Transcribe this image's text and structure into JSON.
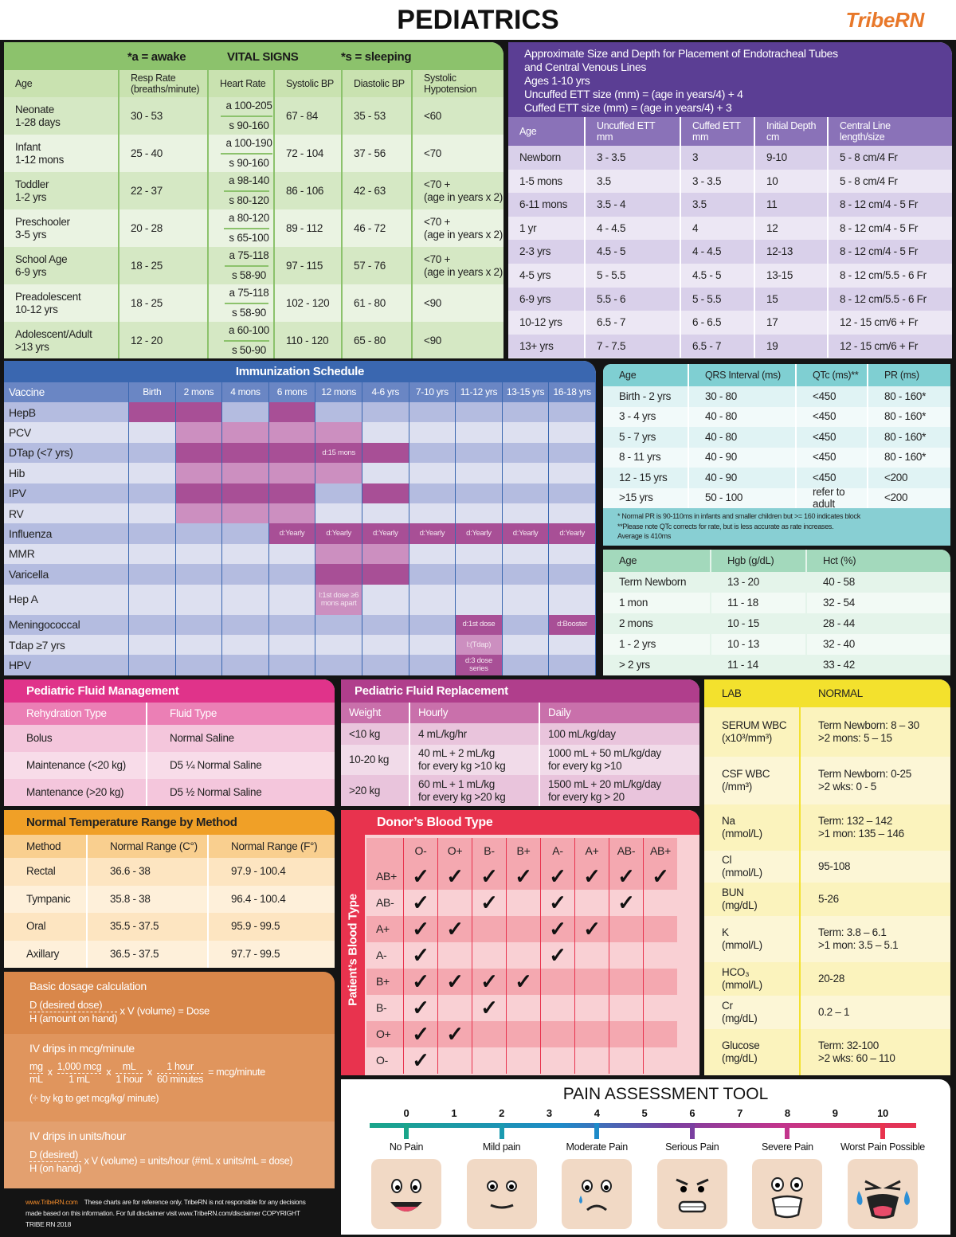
{
  "header": {
    "title": "PEDIATRICS",
    "logo": "TribeRN"
  },
  "colors": {
    "vitals": "#8cc26c",
    "ett": "#5b3e94",
    "immunization": "#3a67b0",
    "dose_dark": "#a84f96",
    "dose_light": "#cc8fc0",
    "ecg": "#5bc3c9",
    "fluid_mgmt": "#e0338a",
    "fluid_repl": "#b03e8c",
    "temperature": "#f0a027",
    "blood": "#e8334e",
    "lab": "#f3e12d"
  },
  "vitals": {
    "awake_note": "*a = awake",
    "title": "VITAL SIGNS",
    "sleep_note": "*s = sleeping",
    "headers": [
      "Age",
      "Resp Rate\n(breaths/minute)",
      "Heart Rate",
      "Systolic BP",
      "Diastolic BP",
      "Systolic\nHypotension"
    ],
    "rows": [
      [
        "Neonate\n1-28 days",
        "30 - 53",
        [
          "a 100-205",
          "s 90-160"
        ],
        "67 - 84",
        "35 - 53",
        "<60"
      ],
      [
        "Infant\n1-12 mons",
        "25 - 40",
        [
          "a 100-190",
          "s 90-160"
        ],
        "72 - 104",
        "37 - 56",
        "<70"
      ],
      [
        "Toddler\n1-2 yrs",
        "22 - 37",
        [
          "a 98-140",
          "s 80-120"
        ],
        "86 - 106",
        "42 - 63",
        "<70 +\n(age in years x 2)"
      ],
      [
        "Preschooler\n3-5 yrs",
        "20 - 28",
        [
          "a 80-120",
          "s 65-100"
        ],
        "89 - 112",
        "46 - 72",
        "<70 +\n(age in years x 2)"
      ],
      [
        "School Age\n6-9 yrs",
        "18 - 25",
        [
          "a 75-118",
          "s 58-90"
        ],
        "97 - 115",
        "57 - 76",
        "<70 +\n(age in years x 2)"
      ],
      [
        "Preadolescent\n10-12 yrs",
        "18 - 25",
        [
          "a 75-118",
          "s 58-90"
        ],
        "102 - 120",
        "61 - 80",
        "<90"
      ],
      [
        "Adolescent/Adult\n>13 yrs",
        "12 - 20",
        [
          "a 60-100",
          "s 50-90"
        ],
        "110 - 120",
        "65 - 80",
        "<90"
      ]
    ]
  },
  "ett": {
    "lines": [
      "Approximate Size and Depth for Placement of Endotracheal Tubes",
      "and Central Venous Lines",
      "Ages 1-10 yrs",
      "Uncuffed ETT size (mm) = (age in years/4) + 4",
      "Cuffed ETT size (mm) = (age in years/4) + 3"
    ],
    "headers": [
      "Age",
      "Uncuffed ETT\nmm",
      "Cuffed ETT\nmm",
      "Initial Depth\ncm",
      "Central Line\nlength/size"
    ],
    "rows": [
      [
        "Newborn",
        "3 - 3.5",
        "3",
        "9-10",
        "5 - 8 cm/4 Fr"
      ],
      [
        "1-5 mons",
        "3.5",
        "3 - 3.5",
        "10",
        "5 - 8 cm/4 Fr"
      ],
      [
        "6-11 mons",
        "3.5 - 4",
        "3.5",
        "11",
        "8 - 12 cm/4 - 5 Fr"
      ],
      [
        "1 yr",
        "4 - 4.5",
        "4",
        "12",
        "8 - 12 cm/4 - 5 Fr"
      ],
      [
        "2-3 yrs",
        "4.5 - 5",
        "4 - 4.5",
        "12-13",
        "8 - 12 cm/4 - 5 Fr"
      ],
      [
        "4-5 yrs",
        "5 - 5.5",
        "4.5 - 5",
        "13-15",
        "8 - 12 cm/5.5 - 6 Fr"
      ],
      [
        "6-9 yrs",
        "5.5 - 6",
        "5 - 5.5",
        "15",
        "8 - 12 cm/5.5 - 6 Fr"
      ],
      [
        "10-12 yrs",
        "6.5 - 7",
        "6 - 6.5",
        "17",
        "12 - 15 cm/6 + Fr"
      ],
      [
        "13+ yrs",
        "7 - 7.5",
        "6.5 - 7",
        "19",
        "12 - 15 cm/6 + Fr"
      ]
    ]
  },
  "immunization": {
    "title": "Immunization Schedule",
    "headers": [
      "Vaccine",
      "Birth",
      "2 mons",
      "4 mons",
      "6 mons",
      "12 mons",
      "4-6 yrs",
      "7-10 yrs",
      "11-12 yrs",
      "13-15 yrs",
      "16-18 yrs"
    ],
    "rows": [
      {
        "name": "HepB",
        "cells": [
          "d",
          "d",
          "",
          "d",
          "",
          "",
          "",
          "",
          "",
          ""
        ]
      },
      {
        "name": "PCV",
        "cells": [
          "",
          "l",
          "l",
          "l",
          "l",
          "",
          "",
          "",
          "",
          ""
        ]
      },
      {
        "name": "DTap (<7 yrs)",
        "cells": [
          "",
          "d",
          "d",
          "d",
          "d:15 mons",
          "d",
          "",
          "",
          "",
          ""
        ]
      },
      {
        "name": "Hib",
        "cells": [
          "",
          "l",
          "l",
          "l",
          "l",
          "",
          "",
          "",
          "",
          ""
        ]
      },
      {
        "name": "IPV",
        "cells": [
          "",
          "d",
          "d",
          "d",
          "",
          "d",
          "",
          "",
          "",
          ""
        ]
      },
      {
        "name": "RV",
        "cells": [
          "",
          "l",
          "l",
          "l",
          "",
          "",
          "",
          "",
          "",
          ""
        ]
      },
      {
        "name": "Influenza",
        "cells": [
          "",
          "",
          "",
          "d:Yearly",
          "d:Yearly",
          "d:Yearly",
          "d:Yearly",
          "d:Yearly",
          "d:Yearly",
          "d:Yearly"
        ]
      },
      {
        "name": "MMR",
        "cells": [
          "",
          "",
          "",
          "",
          "l",
          "l",
          "",
          "",
          "",
          ""
        ]
      },
      {
        "name": "Varicella",
        "cells": [
          "",
          "",
          "",
          "",
          "d",
          "d",
          "",
          "",
          "",
          ""
        ]
      },
      {
        "name": "Hep A",
        "cells": [
          "",
          "",
          "",
          "",
          "l:1st dose ≥6 mons apart",
          "",
          "",
          "",
          "",
          ""
        ]
      },
      {
        "name": "Meningococcal",
        "cells": [
          "",
          "",
          "",
          "",
          "",
          "",
          "",
          "d:1st dose",
          "",
          "d:Booster"
        ]
      },
      {
        "name": "Tdap ≥7 yrs",
        "cells": [
          "",
          "",
          "",
          "",
          "",
          "",
          "",
          "l:(Tdap)",
          "",
          ""
        ]
      },
      {
        "name": "HPV",
        "cells": [
          "",
          "",
          "",
          "",
          "",
          "",
          "",
          "d:3 dose series",
          "",
          ""
        ]
      }
    ]
  },
  "ecg": {
    "headers": [
      "Age",
      "QRS Interval (ms)",
      "QTc (ms)**",
      "PR (ms)"
    ],
    "rows": [
      [
        "Birth - 2 yrs",
        "30 - 80",
        "<450",
        "80 - 160*"
      ],
      [
        "3 - 4 yrs",
        "40 - 80",
        "<450",
        "80 - 160*"
      ],
      [
        "5 - 7 yrs",
        "40 - 80",
        "<450",
        "80 - 160*"
      ],
      [
        "8 - 11 yrs",
        "40 - 90",
        "<450",
        "80 - 160*"
      ],
      [
        "12 - 15 yrs",
        "40 - 90",
        "<450",
        "<200"
      ],
      [
        ">15 yrs",
        "50 - 100",
        "refer to adult",
        "<200"
      ]
    ],
    "notes": [
      "* Normal PR is 90-110ms in infants and smaller children but >= 160 indicates block",
      "**Please note QTc corrects for rate, but is less accurate as rate increases.",
      "Average is 410ms"
    ]
  },
  "hgb": {
    "headers": [
      "Age",
      "Hgb (g/dL)",
      "Hct (%)"
    ],
    "rows": [
      [
        "Term Newborn",
        "13 - 20",
        "40 - 58"
      ],
      [
        "1 mon",
        "11 - 18",
        "32 - 54"
      ],
      [
        "2 mons",
        "10 - 15",
        "28 - 44"
      ],
      [
        "1 - 2 yrs",
        "10 - 13",
        "32 - 40"
      ],
      [
        "> 2 yrs",
        "11 - 14",
        "33 - 42"
      ]
    ]
  },
  "fluid_mgmt": {
    "title": "Pediatric Fluid Management",
    "headers": [
      "Rehydration Type",
      "Fluid Type"
    ],
    "rows": [
      [
        "Bolus",
        "Normal Saline"
      ],
      [
        "Maintenance (<20 kg)",
        "D5 ¼ Normal Saline"
      ],
      [
        "Mantenance (>20 kg)",
        "D5 ½ Normal Saline"
      ]
    ]
  },
  "fluid_repl": {
    "title": "Pediatric Fluid Replacement",
    "headers": [
      "Weight",
      "Hourly",
      "Daily"
    ],
    "rows": [
      [
        "<10 kg",
        "4 mL/kg/hr",
        "100 mL/kg/day"
      ],
      [
        "10-20 kg",
        "40 mL + 2 mL/kg\nfor every kg >10 kg",
        "1000 mL + 50 mL/kg/day\nfor every kg >10"
      ],
      [
        ">20 kg",
        "60 mL + 1 mL/kg\nfor every kg >20 kg",
        "1500 mL + 20 mL/kg/day\nfor every kg > 20"
      ]
    ]
  },
  "temperature": {
    "title": "Normal Temperature Range by Method",
    "headers": [
      "Method",
      "Normal Range (C°)",
      "Normal Range (F°)"
    ],
    "rows": [
      [
        "Rectal",
        "36.6 - 38",
        "97.9 - 100.4"
      ],
      [
        "Tympanic",
        "35.8 - 38",
        "96.4 - 100.4"
      ],
      [
        "Oral",
        "35.5 - 37.5",
        "95.9 - 99.5"
      ],
      [
        "Axillary",
        "36.5 - 37.5",
        "97.7 - 99.5"
      ]
    ]
  },
  "dosage": {
    "basic": {
      "title": "Basic dosage calculation",
      "num": "D (desired dose)",
      "den": "H (amount on hand)",
      "rest": "x V (volume) = Dose"
    },
    "mcg": {
      "title": "IV drips in mcg/minute",
      "fracs": [
        [
          "mg",
          "mL"
        ],
        [
          "1,000 mcg",
          "1 mL"
        ],
        [
          "mL",
          "1 hour"
        ],
        [
          "1 hour",
          "60 minutes"
        ]
      ],
      "times": "x",
      "result": "= mcg/minute",
      "note": "(÷ by kg to get mcg/kg/ minute)"
    },
    "units": {
      "title": "IV drips in units/hour",
      "num": "D (desired)",
      "den": "H (on hand)",
      "rest": "x V (volume) = units/hour (#mL x units/mL = dose)"
    }
  },
  "footer": {
    "link": "www.TribeRN.com",
    "text": "These charts are for reference only. TribeRN is not responsible for any decisions made based on this information. For full disclaimer visit www.TribeRN.com/disclaimer COPYRIGHT TRIBE RN 2018"
  },
  "blood": {
    "title": "Donor’s Blood Type",
    "side_label": "Patient’s Blood Type",
    "donors": [
      "O-",
      "O+",
      "B-",
      "B+",
      "A-",
      "A+",
      "AB-",
      "AB+"
    ],
    "check": "✓",
    "patients": [
      {
        "type": "AB+",
        "compatible": [
          1,
          1,
          1,
          1,
          1,
          1,
          1,
          1
        ]
      },
      {
        "type": "AB-",
        "compatible": [
          1,
          0,
          1,
          0,
          1,
          0,
          1,
          0
        ]
      },
      {
        "type": "A+",
        "compatible": [
          1,
          1,
          0,
          0,
          1,
          1,
          0,
          0
        ]
      },
      {
        "type": "A-",
        "compatible": [
          1,
          0,
          0,
          0,
          1,
          0,
          0,
          0
        ]
      },
      {
        "type": "B+",
        "compatible": [
          1,
          1,
          1,
          1,
          0,
          0,
          0,
          0
        ]
      },
      {
        "type": "B-",
        "compatible": [
          1,
          0,
          1,
          0,
          0,
          0,
          0,
          0
        ]
      },
      {
        "type": "O+",
        "compatible": [
          1,
          1,
          0,
          0,
          0,
          0,
          0,
          0
        ]
      },
      {
        "type": "O-",
        "compatible": [
          1,
          0,
          0,
          0,
          0,
          0,
          0,
          0
        ]
      }
    ]
  },
  "lab": {
    "headers": [
      "LAB",
      "NORMAL"
    ],
    "rows": [
      [
        "SERUM WBC\n(x10³/mm³)",
        "Term Newborn: 8 – 30\n>2 mons: 5 – 15"
      ],
      [
        "CSF WBC\n(/mm³)",
        "Term Newborn: 0-25\n>2 wks: 0 - 5"
      ],
      [
        "Na\n(mmol/L)",
        "Term: 132 – 142\n>1 mon: 135 – 146"
      ],
      [
        "Cl\n(mmol/L)",
        "95-108"
      ],
      [
        "BUN\n(mg/dL)",
        "5-26"
      ],
      [
        "K\n(mmol/L)",
        "Term: 3.8 – 6.1\n>1 mon: 3.5 – 5.1"
      ],
      [
        "HCO₃\n(mmol/L)",
        "20-28"
      ],
      [
        "Cr\n(mg/dL)",
        "0.2 – 1"
      ],
      [
        "Glucose\n(mg/dL)",
        "Term: 32-100\n>2 wks: 60 – 110"
      ]
    ]
  },
  "pain": {
    "title": "PAIN ASSESSMENT TOOL",
    "scale": [
      "0",
      "1",
      "2",
      "3",
      "4",
      "5",
      "6",
      "7",
      "8",
      "9",
      "10"
    ],
    "levels": [
      {
        "label": "No Pain",
        "face": "big-smile"
      },
      {
        "label": "Mild pain",
        "face": "slight-smile"
      },
      {
        "label": "Moderate Pain",
        "face": "sad-tear"
      },
      {
        "label": "Serious Pain",
        "face": "grimace"
      },
      {
        "label": "Severe Pain",
        "face": "distressed"
      },
      {
        "label": "Worst Pain Possible",
        "face": "crying"
      }
    ]
  }
}
